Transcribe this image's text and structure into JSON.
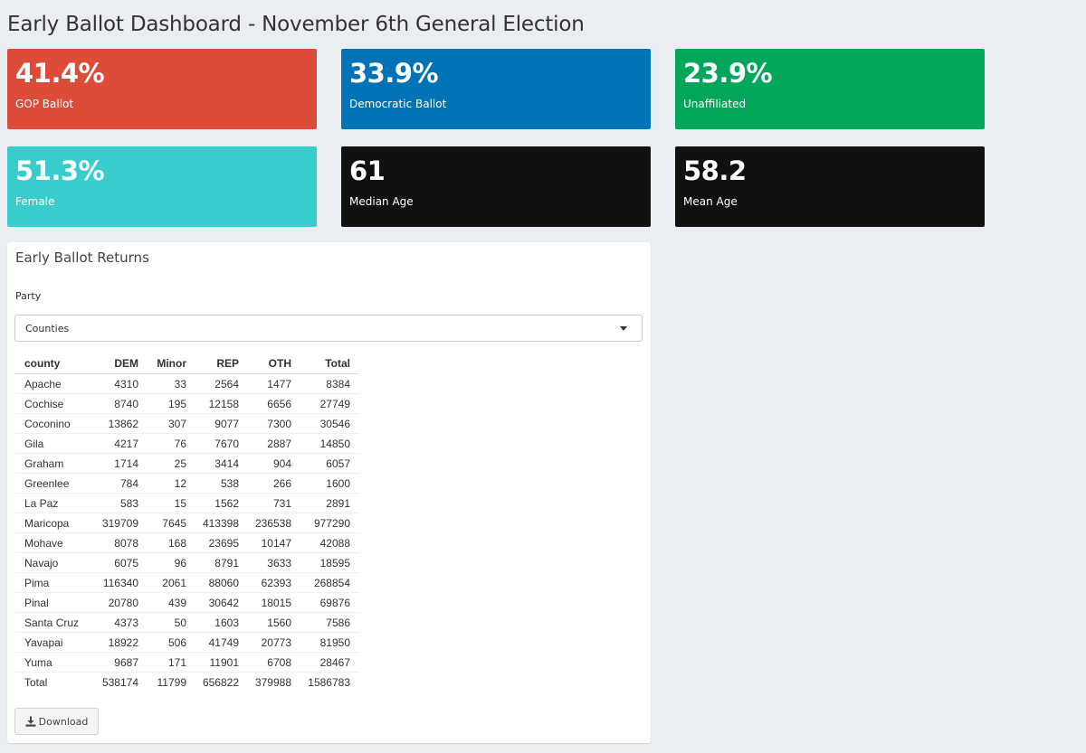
{
  "header": {
    "title": "Early Ballot Dashboard - November 6th General Election"
  },
  "value_boxes": [
    {
      "value": "41.4%",
      "label": "GOP Ballot",
      "color": "#dd4b39"
    },
    {
      "value": "33.9%",
      "label": "Democratic Ballot",
      "color": "#0073b7"
    },
    {
      "value": "23.9%",
      "label": "Unaffiliated",
      "color": "#00a65a"
    },
    {
      "value": "51.3%",
      "label": "Female",
      "color": "#39cccc"
    },
    {
      "value": "61",
      "label": "Median Age",
      "color": "#111111"
    },
    {
      "value": "58.2",
      "label": "Mean Age",
      "color": "#111111"
    }
  ],
  "panel": {
    "title": "Early Ballot Returns",
    "select_label": "Party",
    "select_value": "Counties",
    "download_label": "Download"
  },
  "table": {
    "headers": [
      "county",
      "DEM",
      "Minor",
      "REP",
      "OTH",
      "Total"
    ],
    "rows": [
      [
        "Apache",
        "4310",
        "33",
        "2564",
        "1477",
        "8384"
      ],
      [
        "Cochise",
        "8740",
        "195",
        "12158",
        "6656",
        "27749"
      ],
      [
        "Coconino",
        "13862",
        "307",
        "9077",
        "7300",
        "30546"
      ],
      [
        "Gila",
        "4217",
        "76",
        "7670",
        "2887",
        "14850"
      ],
      [
        "Graham",
        "1714",
        "25",
        "3414",
        "904",
        "6057"
      ],
      [
        "Greenlee",
        "784",
        "12",
        "538",
        "266",
        "1600"
      ],
      [
        "La Paz",
        "583",
        "15",
        "1562",
        "731",
        "2891"
      ],
      [
        "Maricopa",
        "319709",
        "7645",
        "413398",
        "236538",
        "977290"
      ],
      [
        "Mohave",
        "8078",
        "168",
        "23695",
        "10147",
        "42088"
      ],
      [
        "Navajo",
        "6075",
        "96",
        "8791",
        "3633",
        "18595"
      ],
      [
        "Pima",
        "116340",
        "2061",
        "88060",
        "62393",
        "268854"
      ],
      [
        "Pinal",
        "20780",
        "439",
        "30642",
        "18015",
        "69876"
      ],
      [
        "Santa Cruz",
        "4373",
        "50",
        "1603",
        "1560",
        "7586"
      ],
      [
        "Yavapai",
        "18922",
        "506",
        "41749",
        "20773",
        "81950"
      ],
      [
        "Yuma",
        "9687",
        "171",
        "11901",
        "6708",
        "28467"
      ]
    ],
    "total_row": [
      "Total",
      "538174",
      "11799",
      "656822",
      "379988",
      "1586783"
    ]
  },
  "icons": {
    "download": "download-icon",
    "select_caret": "caret-down-icon"
  }
}
